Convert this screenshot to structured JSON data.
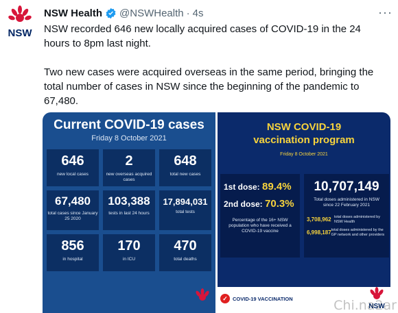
{
  "tweet": {
    "author_name": "NSW Health",
    "handle": "@NSWHealth",
    "separator": "·",
    "time": "4s",
    "more_icon": "more-horizontal-icon",
    "paragraph1": "NSW recorded 646 new locally acquired cases of COVID-19 in the 24 hours to 8pm last night.",
    "paragraph2": "Two new cases were acquired overseas in the same period, bringing the total number of cases in NSW since the beginning of the pandemic to 67,480."
  },
  "avatar": {
    "logo_text": "NSW",
    "icon": "waratah-icon"
  },
  "left_panel": {
    "title": "Current COVID-19 cases",
    "date": "Friday 8 October 2021",
    "tiles": [
      {
        "value": "646",
        "label": "new local cases"
      },
      {
        "value": "2",
        "label": "new overseas acquired cases"
      },
      {
        "value": "648",
        "label": "total new cases"
      },
      {
        "value": "67,480",
        "label": "total cases since January 25 2020"
      },
      {
        "value": "103,388",
        "label": "tests in last 24 hours"
      },
      {
        "value": "17,894,031",
        "label": "total tests"
      },
      {
        "value": "856",
        "label": "in hospital"
      },
      {
        "value": "170",
        "label": "in ICU"
      },
      {
        "value": "470",
        "label": "total deaths"
      }
    ]
  },
  "right_panel": {
    "title_line1": "NSW COVID-19",
    "title_line2": "vaccination program",
    "date": "Friday 8 October 2021",
    "dose1_label": "1st dose:",
    "dose1_value": "89.4%",
    "dose2_label": "2nd dose:",
    "dose2_value": "70.3%",
    "dose_note": "Percentage of the 16+ NSW population who have received a COVID-19 vaccine",
    "total_doses": "10,707,149",
    "total_doses_label": "Total doses administered in NSW since 22 February 2021",
    "nsw_health_doses": "3,708,962",
    "nsw_health_label": "total doses administered by NSW Health",
    "gp_doses": "6,998,187",
    "gp_label": "total doses administered by the GP network and other providers",
    "banner_label": "COVID-19 VACCINATION",
    "logo_text": "NSW"
  },
  "watermark": "Chi.na2ar",
  "colors": {
    "left_bg": "#1a4e8f",
    "right_bg": "#0b2a6b",
    "accent_yellow": "#f7d33d",
    "nsw_red": "#d7153a",
    "verified_blue": "#1d9bf0"
  }
}
